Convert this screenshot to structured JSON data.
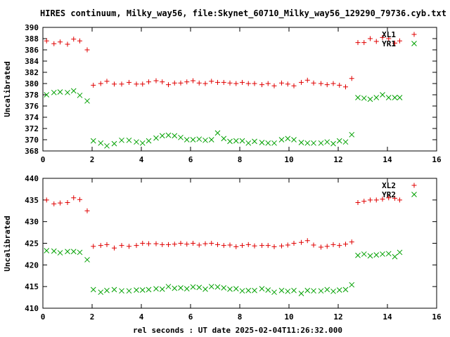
{
  "title": "HIRES continuum, Milky_way56, file:Skynet_60710_Milky_way56_129290_79736.cyb.txt",
  "xlabel": "rel seconds : UT date 2025-02-04T11:26:32.000",
  "chart_data": [
    {
      "type": "scatter",
      "ylabel": "Uncalibrated",
      "xlim": [
        0,
        16
      ],
      "ylim": [
        368,
        390
      ],
      "xticks": [
        0,
        2,
        4,
        6,
        8,
        10,
        12,
        14,
        16
      ],
      "yticks": [
        368,
        370,
        372,
        374,
        376,
        378,
        380,
        382,
        384,
        386,
        388,
        390
      ],
      "legend_position": "top-right",
      "series": [
        {
          "name": "XL1",
          "marker": "plus",
          "color": "#e00000",
          "x": [
            0.15,
            0.45,
            0.7,
            1.0,
            1.25,
            1.5,
            1.8,
            2.05,
            2.35,
            2.6,
            2.9,
            3.2,
            3.5,
            3.8,
            4.05,
            4.3,
            4.6,
            4.85,
            5.1,
            5.35,
            5.6,
            5.85,
            6.1,
            6.35,
            6.6,
            6.85,
            7.1,
            7.35,
            7.6,
            7.85,
            8.1,
            8.35,
            8.6,
            8.9,
            9.15,
            9.4,
            9.7,
            9.95,
            10.2,
            10.5,
            10.75,
            11.0,
            11.3,
            11.55,
            11.8,
            12.05,
            12.3,
            12.55,
            12.8,
            13.05,
            13.3,
            13.55,
            13.8,
            14.05,
            14.3,
            14.5
          ],
          "y": [
            387.6,
            387.1,
            387.4,
            387.0,
            387.9,
            387.6,
            386.0,
            379.7,
            380.0,
            380.4,
            379.9,
            379.9,
            380.2,
            379.9,
            379.9,
            380.3,
            380.5,
            380.3,
            379.8,
            380.1,
            380.1,
            380.3,
            380.5,
            380.1,
            380.0,
            380.4,
            380.2,
            380.2,
            380.1,
            380.0,
            380.2,
            380.0,
            380.0,
            379.8,
            380.0,
            379.6,
            380.1,
            379.9,
            379.6,
            380.2,
            380.6,
            380.1,
            380.0,
            379.8,
            380.0,
            379.7,
            379.4,
            380.9,
            387.3,
            387.3,
            388.0,
            387.5,
            388.2,
            388.0,
            387.2,
            387.6
          ]
        },
        {
          "name": "YR1",
          "marker": "cross",
          "color": "#00a000",
          "x": [
            0.15,
            0.45,
            0.7,
            1.0,
            1.25,
            1.5,
            1.8,
            2.05,
            2.35,
            2.6,
            2.9,
            3.2,
            3.5,
            3.8,
            4.05,
            4.3,
            4.6,
            4.85,
            5.1,
            5.35,
            5.6,
            5.85,
            6.1,
            6.35,
            6.6,
            6.85,
            7.1,
            7.35,
            7.6,
            7.85,
            8.1,
            8.35,
            8.6,
            8.9,
            9.15,
            9.4,
            9.7,
            9.95,
            10.2,
            10.5,
            10.75,
            11.0,
            11.3,
            11.55,
            11.8,
            12.05,
            12.3,
            12.55,
            12.8,
            13.05,
            13.3,
            13.55,
            13.8,
            14.05,
            14.3,
            14.5
          ],
          "y": [
            378.0,
            378.4,
            378.5,
            378.4,
            378.7,
            377.9,
            376.9,
            369.8,
            369.4,
            368.9,
            369.3,
            369.9,
            369.9,
            369.6,
            369.4,
            369.8,
            370.3,
            370.7,
            370.8,
            370.7,
            370.4,
            370.0,
            370.0,
            370.1,
            369.9,
            370.0,
            371.2,
            370.2,
            369.7,
            369.8,
            369.8,
            369.4,
            369.7,
            369.5,
            369.4,
            369.4,
            370.0,
            370.2,
            370.0,
            369.5,
            369.4,
            369.4,
            369.4,
            369.6,
            369.3,
            369.8,
            369.6,
            370.9,
            377.5,
            377.4,
            377.2,
            377.5,
            378.0,
            377.5,
            377.5,
            377.5
          ]
        }
      ]
    },
    {
      "type": "scatter",
      "ylabel": "Uncalibrated",
      "xlim": [
        0,
        16
      ],
      "ylim": [
        410,
        440
      ],
      "xticks": [
        0,
        2,
        4,
        6,
        8,
        10,
        12,
        14,
        16
      ],
      "yticks": [
        410,
        415,
        420,
        425,
        430,
        435,
        440
      ],
      "legend_position": "top-right",
      "series": [
        {
          "name": "XL2",
          "marker": "plus",
          "color": "#e00000",
          "x": [
            0.15,
            0.45,
            0.7,
            1.0,
            1.25,
            1.5,
            1.8,
            2.05,
            2.35,
            2.6,
            2.9,
            3.2,
            3.5,
            3.8,
            4.05,
            4.3,
            4.6,
            4.85,
            5.1,
            5.35,
            5.6,
            5.85,
            6.1,
            6.35,
            6.6,
            6.85,
            7.1,
            7.35,
            7.6,
            7.85,
            8.1,
            8.35,
            8.6,
            8.9,
            9.15,
            9.4,
            9.7,
            9.95,
            10.2,
            10.5,
            10.75,
            11.0,
            11.3,
            11.55,
            11.8,
            12.05,
            12.3,
            12.55,
            12.8,
            13.05,
            13.3,
            13.55,
            13.8,
            14.05,
            14.3,
            14.5
          ],
          "y": [
            435.0,
            434.1,
            434.3,
            434.4,
            435.5,
            435.1,
            432.5,
            424.3,
            424.5,
            424.7,
            423.9,
            424.5,
            424.3,
            424.5,
            425.0,
            424.9,
            424.9,
            424.7,
            424.7,
            424.8,
            425.0,
            424.8,
            425.0,
            424.6,
            424.9,
            425.0,
            424.7,
            424.5,
            424.6,
            424.2,
            424.5,
            424.7,
            424.4,
            424.5,
            424.5,
            424.2,
            424.4,
            424.6,
            425.0,
            425.2,
            425.6,
            424.6,
            424.1,
            424.3,
            424.7,
            424.5,
            424.8,
            425.3,
            434.4,
            434.7,
            435.0,
            435.0,
            435.2,
            435.5,
            435.4,
            435.0
          ]
        },
        {
          "name": "YR2",
          "marker": "cross",
          "color": "#00a000",
          "x": [
            0.15,
            0.45,
            0.7,
            1.0,
            1.25,
            1.5,
            1.8,
            2.05,
            2.35,
            2.6,
            2.9,
            3.2,
            3.5,
            3.8,
            4.05,
            4.3,
            4.6,
            4.85,
            5.1,
            5.35,
            5.6,
            5.85,
            6.1,
            6.35,
            6.6,
            6.85,
            7.1,
            7.35,
            7.6,
            7.85,
            8.1,
            8.35,
            8.6,
            8.9,
            9.15,
            9.4,
            9.7,
            9.95,
            10.2,
            10.5,
            10.75,
            11.0,
            11.3,
            11.55,
            11.8,
            12.05,
            12.3,
            12.55,
            12.8,
            13.05,
            13.3,
            13.55,
            13.8,
            14.05,
            14.3,
            14.5
          ],
          "y": [
            423.3,
            423.2,
            422.8,
            423.1,
            423.1,
            422.9,
            421.2,
            414.3,
            413.7,
            414.1,
            414.3,
            414.0,
            414.0,
            414.2,
            414.2,
            414.3,
            414.5,
            414.4,
            415.0,
            414.6,
            414.7,
            414.5,
            414.9,
            414.8,
            414.4,
            415.0,
            414.9,
            414.7,
            414.4,
            414.5,
            414.0,
            414.1,
            414.1,
            414.5,
            414.2,
            413.7,
            414.1,
            413.9,
            414.1,
            413.4,
            414.1,
            414.0,
            414.0,
            414.3,
            413.9,
            414.2,
            414.3,
            415.4,
            422.2,
            422.5,
            422.1,
            422.3,
            422.5,
            422.6,
            421.9,
            422.9
          ]
        }
      ]
    }
  ]
}
